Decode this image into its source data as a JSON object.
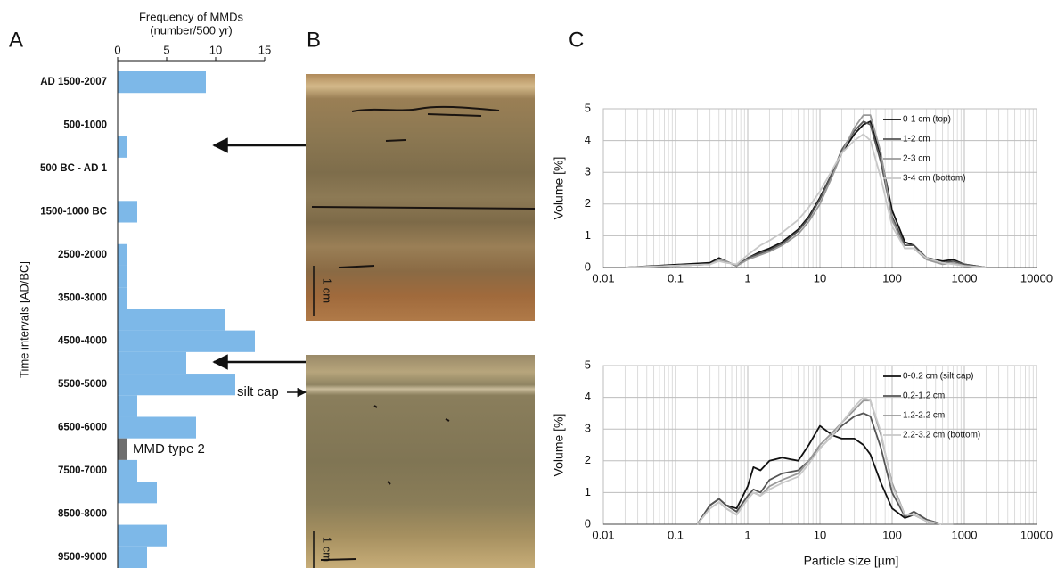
{
  "panel_labels": [
    "A",
    "B",
    "C"
  ],
  "photos": {
    "scale_labels": [
      "1 cm",
      "1 cm"
    ],
    "annotation": "silt cap"
  },
  "chart_data": [
    {
      "type": "hbar",
      "title": "Frequency of MMDs",
      "subtitle": "(number/500 yr)",
      "ylabel": "Time intervals [AD/BC]",
      "categories": [
        "AD 1500-2007",
        null,
        "500-1000",
        null,
        "500 BC - AD 1",
        null,
        "1500-1000 BC",
        null,
        "2500-2000",
        null,
        "3500-3000",
        null,
        "4500-4000",
        null,
        "5500-5000",
        null,
        "6500-6000",
        null,
        "7500-7000",
        null,
        "8500-8000",
        null,
        "9500-9000"
      ],
      "series": [
        {
          "color": "#7db8e8",
          "values": [
            9,
            0,
            0,
            1,
            0,
            0,
            2,
            0,
            1,
            1,
            1,
            11,
            14,
            7,
            12,
            2,
            8,
            0,
            2,
            4,
            0,
            5,
            3
          ]
        },
        {
          "name": "MMD type 2",
          "color": "#6e6e6e",
          "values": [
            0,
            0,
            0,
            0,
            0,
            0,
            0,
            0,
            0,
            0,
            0,
            0,
            0,
            0,
            0,
            0,
            0,
            1,
            0,
            0,
            0,
            0,
            0
          ]
        }
      ],
      "xlim": [
        0,
        15
      ],
      "xticks": [
        0,
        5,
        10,
        15
      ]
    },
    {
      "type": "line",
      "ylabel": "Volume [%]",
      "xscale": "log",
      "grid": true,
      "legend": "upper right",
      "x": [
        0.02,
        0.3,
        0.4,
        0.5,
        0.7,
        1,
        1.5,
        2,
        3,
        5,
        7,
        10,
        15,
        20,
        30,
        40,
        50,
        70,
        100,
        150,
        200,
        300,
        500,
        700,
        1000,
        2000
      ],
      "series": [
        {
          "name": "0-1 cm (top)",
          "color": "#111111",
          "values": [
            0,
            0.15,
            0.3,
            0.2,
            0.05,
            0.3,
            0.5,
            0.6,
            0.8,
            1.2,
            1.6,
            2.2,
            3.0,
            3.6,
            4.2,
            4.5,
            4.6,
            3.5,
            1.8,
            0.8,
            0.7,
            0.3,
            0.2,
            0.25,
            0.1,
            0
          ]
        },
        {
          "name": "1-2 cm",
          "color": "#555555",
          "values": [
            0,
            0.1,
            0.25,
            0.2,
            0.05,
            0.3,
            0.45,
            0.55,
            0.75,
            1.15,
            1.55,
            2.15,
            3.0,
            3.7,
            4.3,
            4.6,
            4.5,
            3.3,
            1.6,
            0.7,
            0.7,
            0.3,
            0.15,
            0.2,
            0.1,
            0
          ]
        },
        {
          "name": "2-3 cm",
          "color": "#999999",
          "values": [
            0,
            0.1,
            0.25,
            0.2,
            0.05,
            0.25,
            0.4,
            0.5,
            0.7,
            1.05,
            1.45,
            2.0,
            2.9,
            3.6,
            4.4,
            4.8,
            4.8,
            3.6,
            1.5,
            0.6,
            0.6,
            0.25,
            0.1,
            0.15,
            0.05,
            0
          ]
        },
        {
          "name": "3-4 cm (bottom)",
          "color": "#c8c8c8",
          "values": [
            0,
            0.1,
            0.2,
            0.15,
            0.1,
            0.4,
            0.7,
            0.85,
            1.1,
            1.5,
            1.9,
            2.4,
            3.1,
            3.6,
            4.0,
            4.2,
            4.0,
            2.8,
            1.3,
            0.6,
            0.6,
            0.3,
            0.15,
            0.1,
            0.05,
            0
          ]
        }
      ],
      "xlim": [
        0.01,
        10000
      ],
      "xticks": [
        0.01,
        0.1,
        1,
        10,
        100,
        1000,
        10000
      ],
      "ylim": [
        0,
        5
      ],
      "yticks": [
        0,
        1,
        2,
        3,
        4,
        5
      ]
    },
    {
      "type": "line",
      "ylabel": "Volume [%]",
      "xlabel": "Particle size [µm]",
      "xscale": "log",
      "grid": true,
      "legend": "upper right",
      "x": [
        0.2,
        0.3,
        0.4,
        0.5,
        0.7,
        1,
        1.2,
        1.5,
        2,
        3,
        5,
        7,
        10,
        15,
        20,
        30,
        40,
        50,
        70,
        100,
        150,
        200,
        300,
        500,
        700
      ],
      "series": [
        {
          "name": "0-0.2 cm (silt cap)",
          "color": "#111111",
          "values": [
            0,
            0.6,
            0.8,
            0.6,
            0.5,
            1.2,
            1.8,
            1.7,
            2.0,
            2.1,
            2.0,
            2.5,
            3.1,
            2.8,
            2.7,
            2.7,
            2.5,
            2.2,
            1.3,
            0.5,
            0.2,
            0.3,
            0.1,
            0,
            0
          ]
        },
        {
          "name": "0.2-1.2 cm",
          "color": "#555555",
          "values": [
            0,
            0.6,
            0.8,
            0.6,
            0.4,
            0.9,
            1.1,
            1.0,
            1.4,
            1.6,
            1.7,
            2.0,
            2.4,
            2.8,
            3.1,
            3.4,
            3.5,
            3.4,
            2.4,
            1.0,
            0.25,
            0.4,
            0.15,
            0,
            0
          ]
        },
        {
          "name": "1.2-2.2 cm",
          "color": "#999999",
          "values": [
            0,
            0.5,
            0.7,
            0.5,
            0.3,
            0.8,
            1.0,
            0.9,
            1.2,
            1.4,
            1.6,
            2.0,
            2.5,
            2.9,
            3.2,
            3.6,
            3.9,
            3.9,
            2.8,
            1.3,
            0.3,
            0.3,
            0.1,
            0,
            0
          ]
        },
        {
          "name": "2.2-3.2 cm (bottom)",
          "color": "#c8c8c8",
          "values": [
            0,
            0.5,
            0.7,
            0.5,
            0.3,
            0.8,
            1.0,
            0.9,
            1.1,
            1.3,
            1.5,
            1.9,
            2.4,
            2.8,
            3.2,
            3.7,
            4.0,
            3.9,
            2.9,
            1.2,
            0.3,
            0.3,
            0.1,
            0,
            0
          ]
        }
      ],
      "xlim": [
        0.01,
        10000
      ],
      "xticks": [
        0.01,
        0.1,
        1,
        10,
        100,
        1000,
        10000
      ],
      "ylim": [
        0,
        5
      ],
      "yticks": [
        0,
        1,
        2,
        3,
        4,
        5
      ]
    }
  ]
}
